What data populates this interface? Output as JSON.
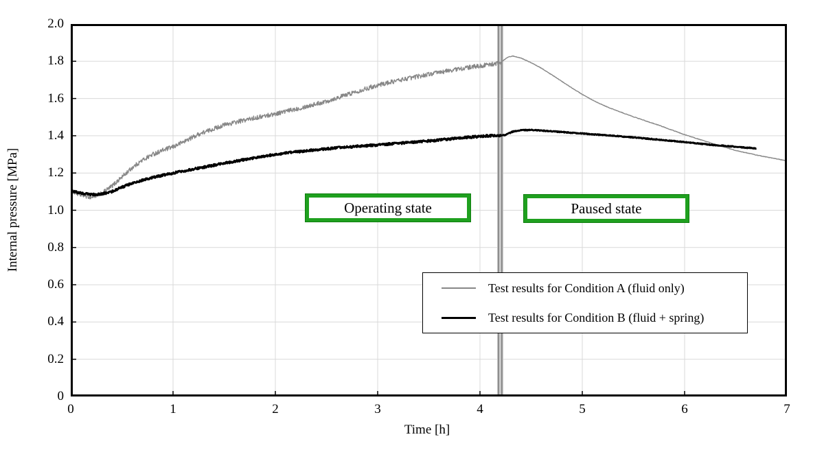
{
  "figure": {
    "background_color": "#ffffff",
    "y_axis_title": "Internal pressure [MPa]",
    "x_axis_title": "Time [h]",
    "y_tick_labels": [
      "2.0",
      "1.8",
      "1.6",
      "1.4",
      "1.2",
      "1.0",
      "0.8",
      "0.6",
      "0.4",
      "0.2",
      "0"
    ],
    "x_tick_labels": [
      "0",
      "1",
      "2",
      "3",
      "4",
      "5",
      "6",
      "7"
    ],
    "grid_color": "#d9d9d9",
    "axis_color": "#000000"
  },
  "annotations": {
    "operating_label": "Operating state",
    "paused_label": "Paused state",
    "box_border_color": "#1fa01f",
    "pause_marker": {
      "time": 4.2,
      "band_t0": 4.168,
      "band_t1": 4.228,
      "band_fill": "#c9c9c9",
      "band_line_color": "#7f7f7f"
    }
  },
  "legend": {
    "items": [
      {
        "label": "Test results for Condition A (fluid only)",
        "color": "#878787",
        "thickness": 1.5
      },
      {
        "label": "Test results for Condition B (fluid + spring)",
        "color": "#000000",
        "thickness": 3
      }
    ]
  },
  "chart_data": {
    "type": "line",
    "title": "",
    "xlabel": "Time [h]",
    "ylabel": "Internal pressure [MPa]",
    "xlim": [
      0,
      7
    ],
    "ylim": [
      0,
      2
    ],
    "x_ticks": [
      0,
      1,
      2,
      3,
      4,
      5,
      6,
      7
    ],
    "y_ticks": [
      0,
      0.2,
      0.4,
      0.6,
      0.8,
      1.0,
      1.2,
      1.4,
      1.6,
      1.8,
      2.0
    ],
    "grid": true,
    "legend_position": "lower-right-inside",
    "phase_change_time": 4.2,
    "phases": [
      {
        "name": "Operating state",
        "t_start": 0,
        "t_end": 4.2
      },
      {
        "name": "Paused state",
        "t_start": 4.2,
        "t_end": 7
      }
    ],
    "series": [
      {
        "name": "Test results for Condition A (fluid only)",
        "color": "#878787",
        "stroke_width": 1.4,
        "noise_operating": 0.012,
        "noise_paused": 0.0015,
        "points": [
          [
            0,
            1.105
          ],
          [
            0.05,
            1.092
          ],
          [
            0.1,
            1.082
          ],
          [
            0.2,
            1.07
          ],
          [
            0.3,
            1.088
          ],
          [
            0.4,
            1.128
          ],
          [
            0.5,
            1.178
          ],
          [
            0.6,
            1.228
          ],
          [
            0.7,
            1.268
          ],
          [
            0.8,
            1.3
          ],
          [
            0.9,
            1.322
          ],
          [
            1,
            1.34
          ],
          [
            1.25,
            1.408
          ],
          [
            1.5,
            1.458
          ],
          [
            1.75,
            1.49
          ],
          [
            2,
            1.518
          ],
          [
            2.25,
            1.55
          ],
          [
            2.5,
            1.585
          ],
          [
            2.75,
            1.63
          ],
          [
            3,
            1.672
          ],
          [
            3.25,
            1.703
          ],
          [
            3.5,
            1.73
          ],
          [
            3.75,
            1.755
          ],
          [
            4,
            1.775
          ],
          [
            4.1,
            1.782
          ],
          [
            4.2,
            1.792
          ],
          [
            4.27,
            1.822
          ],
          [
            4.32,
            1.828
          ],
          [
            4.4,
            1.818
          ],
          [
            4.5,
            1.792
          ],
          [
            4.6,
            1.763
          ],
          [
            4.75,
            1.71
          ],
          [
            4.88,
            1.663
          ],
          [
            5,
            1.622
          ],
          [
            5.12,
            1.585
          ],
          [
            5.25,
            1.553
          ],
          [
            5.4,
            1.522
          ],
          [
            5.5,
            1.502
          ],
          [
            5.75,
            1.456
          ],
          [
            6,
            1.406
          ],
          [
            6.25,
            1.362
          ],
          [
            6.5,
            1.321
          ],
          [
            6.75,
            1.291
          ],
          [
            6.9,
            1.276
          ],
          [
            7,
            1.265
          ]
        ]
      },
      {
        "name": "Test results for Condition B (fluid + spring)",
        "color": "#000000",
        "stroke_width": 2.8,
        "noise_operating": 0.006,
        "noise_paused": 0.0025,
        "points": [
          [
            0,
            1.105
          ],
          [
            0.1,
            1.092
          ],
          [
            0.2,
            1.084
          ],
          [
            0.3,
            1.086
          ],
          [
            0.4,
            1.1
          ],
          [
            0.5,
            1.124
          ],
          [
            0.6,
            1.144
          ],
          [
            0.75,
            1.169
          ],
          [
            1,
            1.2
          ],
          [
            1.25,
            1.226
          ],
          [
            1.5,
            1.252
          ],
          [
            1.75,
            1.277
          ],
          [
            2,
            1.3
          ],
          [
            2.25,
            1.316
          ],
          [
            2.5,
            1.33
          ],
          [
            2.75,
            1.341
          ],
          [
            3,
            1.351
          ],
          [
            3.25,
            1.361
          ],
          [
            3.5,
            1.372
          ],
          [
            3.75,
            1.385
          ],
          [
            4,
            1.397
          ],
          [
            4.1,
            1.4
          ],
          [
            4.2,
            1.401
          ],
          [
            4.25,
            1.405
          ],
          [
            4.32,
            1.422
          ],
          [
            4.4,
            1.43
          ],
          [
            4.5,
            1.431
          ],
          [
            4.6,
            1.428
          ],
          [
            4.75,
            1.422
          ],
          [
            5,
            1.412
          ],
          [
            5.25,
            1.402
          ],
          [
            5.5,
            1.391
          ],
          [
            5.75,
            1.379
          ],
          [
            6,
            1.366
          ],
          [
            6.25,
            1.352
          ],
          [
            6.5,
            1.341
          ],
          [
            6.6,
            1.336
          ],
          [
            6.7,
            1.332
          ]
        ]
      }
    ]
  }
}
